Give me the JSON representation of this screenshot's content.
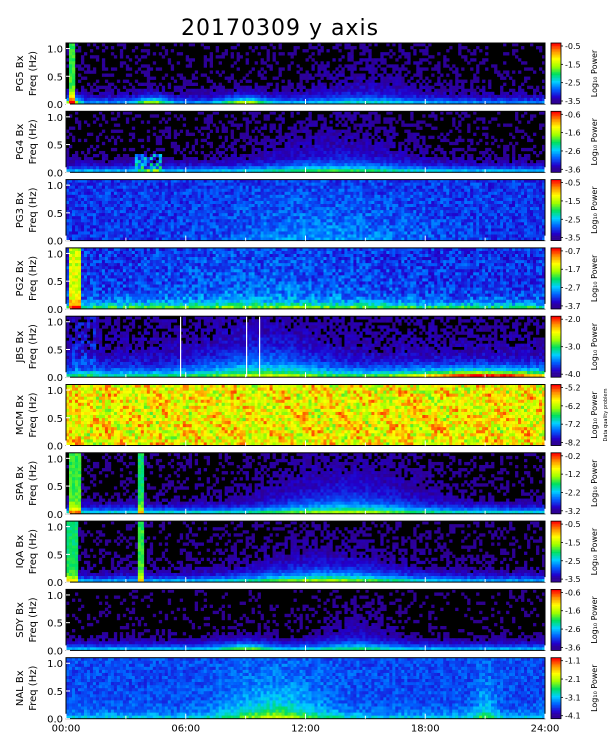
{
  "chart_data": {
    "type": "heatmap",
    "title": "20170309 y axis",
    "x_tick_labels": [
      "00:00",
      "06:00",
      "12:00",
      "18:00",
      "24:00"
    ],
    "x_range_hours": [
      0,
      24
    ],
    "y_tick_labels": [
      "0.0",
      "0.5",
      "1.0"
    ],
    "y_range_hz": [
      0,
      1.1
    ],
    "ylabel_freq": "Freq (Hz)",
    "colorbar_label": "Log₁₀ Power",
    "colormap": [
      "#3a0055",
      "#2200cc",
      "#0060ff",
      "#00d0ff",
      "#00e060",
      "#a0ff00",
      "#ffff00",
      "#ff9000",
      "#ff0000"
    ],
    "panels": [
      {
        "label": "PG5 Bx",
        "scale": [
          "-0.5",
          "-1.5",
          "-2.5",
          "-3.5"
        ],
        "profile": "pg5"
      },
      {
        "label": "PG4 Bx",
        "scale": [
          "-0.6",
          "-1.6",
          "-2.6",
          "-3.6"
        ],
        "profile": "pg4"
      },
      {
        "label": "PG3 Bx",
        "scale": [
          "-0.5",
          "-1.5",
          "-2.5",
          "-3.5"
        ],
        "profile": "pg3"
      },
      {
        "label": "PG2 Bx",
        "scale": [
          "-0.7",
          "-1.7",
          "-2.7",
          "-3.7"
        ],
        "profile": "pg2"
      },
      {
        "label": "JBS Bx",
        "scale": [
          "-2.0",
          "-3.0",
          "-4.0"
        ],
        "profile": "jbs"
      },
      {
        "label": "MCM Bx",
        "scale": [
          "-5.2",
          "-6.2",
          "-7.2",
          "-8.2"
        ],
        "profile": "mcm",
        "colorbar_note": "Data quality problem"
      },
      {
        "label": "SPA Bx",
        "scale": [
          "-0.2",
          "-1.2",
          "-2.2",
          "-3.2"
        ],
        "profile": "spa"
      },
      {
        "label": "IQA Bx",
        "scale": [
          "-0.5",
          "-1.5",
          "-2.5",
          "-3.5"
        ],
        "profile": "iqa"
      },
      {
        "label": "SDY Bx",
        "scale": [
          "-0.6",
          "-1.6",
          "-2.6",
          "-3.6"
        ],
        "profile": "sdy"
      },
      {
        "label": "NAL Bx",
        "scale": [
          "-1.1",
          "-2.1",
          "-3.1",
          "-4.1"
        ],
        "profile": "nal"
      }
    ]
  }
}
